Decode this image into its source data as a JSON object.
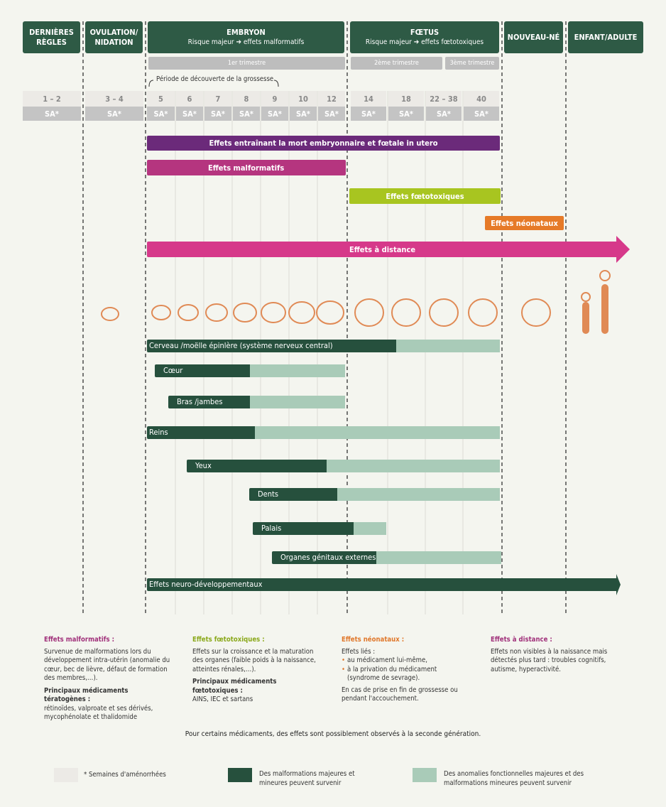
{
  "headers": [
    {
      "title": "DERNIÈRES RÈGLES"
    },
    {
      "title": "OVULATION/ NIDATION"
    },
    {
      "title": "EMBRYON",
      "subtitle": "Risque majeur ➔ effets malformatifs"
    },
    {
      "title": "FŒTUS",
      "subtitle": "Risque majeur ➔ effets fœtotoxiques"
    },
    {
      "title": "NOUVEAU-NÉ"
    },
    {
      "title": "ENFANT/ADULTE"
    }
  ],
  "trimesters": [
    "1er trimestre",
    "2ème trimestre",
    "3ème trimestre"
  ],
  "discovery": "Période de découverte de la grossesse",
  "weeks": [
    "1 – 2",
    "3 – 4",
    "5",
    "6",
    "7",
    "8",
    "9",
    "10",
    "12",
    "14",
    "18",
    "22 – 38",
    "40"
  ],
  "week_unit": "SA*",
  "effects": [
    "Effets entraînant la mort embryonnaire et fœtale in utero",
    "Effets malformatifs",
    "Effets fœtotoxiques",
    "Effets néonataux",
    "Effets à distance"
  ],
  "organs": [
    "Cerveau /moëlle épinlère (système nerveux central)",
    "Cœur",
    "Bras /jambes",
    "Reins",
    "Yeux",
    "Dents",
    "Palais",
    "Organes génitaux externes",
    "Effets neuro-développementaux"
  ],
  "notes": [
    {
      "title": "Effets malformatifs :",
      "text": "Survenue de malformations lors du développement intra-utérin (anomalie du cœur, bec de lièvre, défaut de formation des membres,…).",
      "bold": "Principaux médicaments tératogènes :",
      "after": "rétinoïdes, valproate et ses dérivés, mycophénolate et thalidomide"
    },
    {
      "title": "Effets fœtotoxiques :",
      "text": "Effets sur la croissance et la maturation des organes (faible poids à la naissance, atteintes rénales,…).",
      "bold": "Principaux médicaments fœtotoxiques :",
      "after": "AINS, IEC et sartans"
    },
    {
      "title": "Effets néonataux :",
      "text": "Effets liés :",
      "bullets": [
        "au médicament lui-même,",
        "à la privation du médicament (syndrome de sevrage)."
      ],
      "after": "En cas de prise en fin de grossesse ou pendant l'accouchement."
    },
    {
      "title": "Effets à distance :",
      "text": "Effets non visibles à la naissance mais détectés plus tard : troubles cognitifs, autisme, hyperactivité."
    }
  ],
  "footer": "Pour certains médicaments, des effets sont possiblement observés à la seconde génération.",
  "legend": [
    "* Semaines d'aménorrhées",
    "Des malformations majeures et mineures peuvent survenir",
    "Des anomalies fonctionnelles majeures et des malformations mineures peuvent survenir"
  ]
}
